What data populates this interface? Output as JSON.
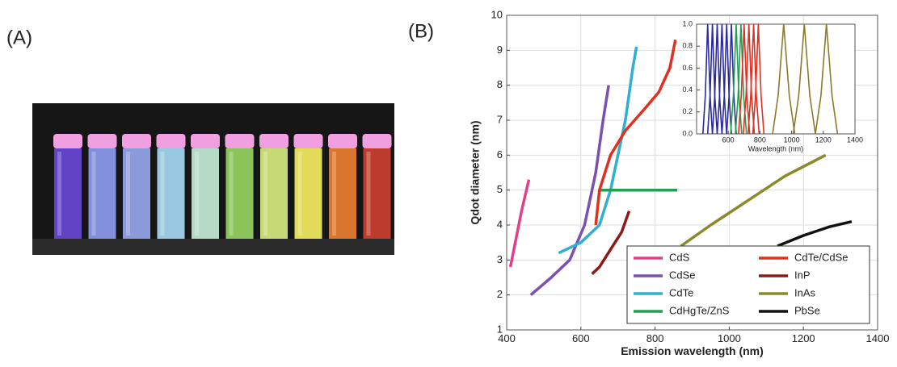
{
  "panels": {
    "a_label": "(A)",
    "b_label": "(B)"
  },
  "chart_data": [
    {
      "type": "line",
      "xlabel": "Emission wavelength (nm)",
      "ylabel": "Qdot diameter (nm)",
      "xlim": [
        400,
        1400
      ],
      "xticks": [
        400,
        600,
        800,
        1000,
        1200,
        1400
      ],
      "ylim": [
        1,
        10
      ],
      "yticks": [
        1,
        2,
        3,
        4,
        5,
        6,
        7,
        8,
        9,
        10
      ],
      "grid": true,
      "legend": "lower right",
      "series": [
        {
          "name": "CdS",
          "color": "#e0408a",
          "x": [
            410,
            425,
            440,
            460
          ],
          "values": [
            2.8,
            3.6,
            4.4,
            5.3
          ]
        },
        {
          "name": "CdSe",
          "color": "#7a50b0",
          "x": [
            465,
            520,
            570,
            610,
            640,
            660,
            675
          ],
          "values": [
            2.0,
            2.5,
            3.0,
            4.0,
            5.5,
            7.0,
            8.0
          ]
        },
        {
          "name": "CdTe",
          "color": "#30b0d0",
          "x": [
            540,
            600,
            650,
            680,
            700,
            720,
            740,
            750
          ],
          "values": [
            3.2,
            3.5,
            4.0,
            5.0,
            6.0,
            7.0,
            8.5,
            9.1
          ]
        },
        {
          "name": "CdHgTe/ZnS",
          "color": "#20a050",
          "x": [
            650,
            720,
            780,
            800,
            820,
            840,
            860
          ],
          "values": [
            5,
            5,
            5,
            5,
            5,
            5,
            5
          ]
        },
        {
          "name": "CdTe/CdSe",
          "color": "#e03020",
          "x": [
            640,
            650,
            680,
            720,
            770,
            810,
            840,
            855
          ],
          "values": [
            4.0,
            5.0,
            6.0,
            6.7,
            7.3,
            7.8,
            8.5,
            9.3
          ]
        },
        {
          "name": "InP",
          "color": "#8b1a1a",
          "x": [
            630,
            650,
            680,
            710,
            730
          ],
          "values": [
            2.6,
            2.8,
            3.3,
            3.8,
            4.4
          ]
        },
        {
          "name": "InAs",
          "color": "#8a8a2a",
          "x": [
            870,
            950,
            1050,
            1150,
            1260
          ],
          "values": [
            3.4,
            4.0,
            4.7,
            5.4,
            6.0
          ]
        },
        {
          "name": "PbSe",
          "color": "#111111",
          "x": [
            1130,
            1200,
            1270,
            1330
          ],
          "values": [
            3.4,
            3.7,
            3.95,
            4.1
          ]
        }
      ]
    },
    {
      "type": "line",
      "xlabel": "Wavelength (nm)",
      "xlim": [
        400,
        1400
      ],
      "xticks": [
        600,
        800,
        1000,
        1200,
        1400
      ],
      "ylim": [
        0,
        1
      ],
      "yticks": [
        {
          "value": 0,
          "label": "0.0"
        },
        {
          "value": 0.2,
          "label": "0.2"
        },
        {
          "value": 0.4,
          "label": "0.4"
        },
        {
          "value": 0.6,
          "label": "0.6"
        },
        {
          "value": 0.8,
          "label": "0.8"
        },
        {
          "value": 1,
          "label": "1.0"
        }
      ],
      "grid": false,
      "series": [
        {
          "color": "#2a2aa0",
          "x": [
            440,
            455,
            470,
            485,
            500
          ],
          "values": [
            0,
            0.35,
            1,
            0.35,
            0
          ]
        },
        {
          "color": "#2a2aa0",
          "x": [
            470,
            485,
            500,
            515,
            530
          ],
          "values": [
            0,
            0.35,
            1,
            0.35,
            0
          ]
        },
        {
          "color": "#2a2aa0",
          "x": [
            500,
            515,
            530,
            545,
            560
          ],
          "values": [
            0,
            0.35,
            1,
            0.35,
            0
          ]
        },
        {
          "color": "#2a2aa0",
          "x": [
            530,
            545,
            560,
            575,
            590
          ],
          "values": [
            0,
            0.35,
            1,
            0.35,
            0
          ]
        },
        {
          "color": "#2a2aa0",
          "x": [
            560,
            575,
            590,
            605,
            620
          ],
          "values": [
            0,
            0.35,
            1,
            0.35,
            0
          ]
        },
        {
          "color": "#2a2aa0",
          "x": [
            590,
            605,
            620,
            635,
            650
          ],
          "values": [
            0,
            0.35,
            1,
            0.35,
            0
          ]
        },
        {
          "color": "#20a050",
          "x": [
            615,
            632,
            650,
            667,
            685
          ],
          "values": [
            0,
            0.35,
            1,
            0.35,
            0
          ]
        },
        {
          "color": "#20a050",
          "x": [
            645,
            662,
            680,
            697,
            715
          ],
          "values": [
            0,
            0.35,
            1,
            0.35,
            0
          ]
        },
        {
          "color": "#e03020",
          "x": [
            665,
            682,
            700,
            717,
            735
          ],
          "values": [
            0,
            0.35,
            1,
            0.35,
            0
          ]
        },
        {
          "color": "#e03020",
          "x": [
            695,
            712,
            730,
            747,
            765
          ],
          "values": [
            0,
            0.35,
            1,
            0.35,
            0
          ]
        },
        {
          "color": "#e03020",
          "x": [
            725,
            742,
            760,
            777,
            795
          ],
          "values": [
            0,
            0.35,
            1,
            0.35,
            0
          ]
        },
        {
          "color": "#e03020",
          "x": [
            755,
            772,
            790,
            807,
            825
          ],
          "values": [
            0,
            0.35,
            1,
            0.35,
            0
          ]
        },
        {
          "color": "#8a7a2a",
          "x": [
            880,
            915,
            950,
            985,
            1020
          ],
          "values": [
            0,
            0.35,
            1,
            0.35,
            0
          ]
        },
        {
          "color": "#8a7a2a",
          "x": [
            1010,
            1045,
            1080,
            1115,
            1150
          ],
          "values": [
            0,
            0.35,
            1,
            0.35,
            0
          ]
        },
        {
          "color": "#8a7a2a",
          "x": [
            1150,
            1185,
            1220,
            1255,
            1290
          ],
          "values": [
            0,
            0.35,
            1,
            0.35,
            0
          ]
        }
      ]
    }
  ]
}
